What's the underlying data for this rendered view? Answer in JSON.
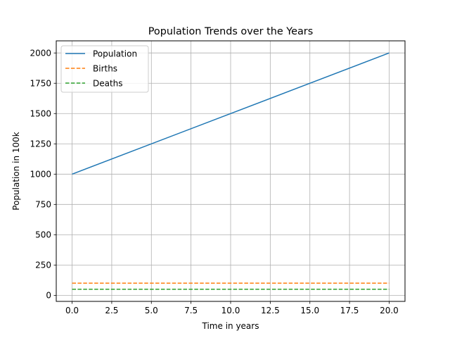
{
  "chart_data": {
    "type": "line",
    "title": "Population Trends over the Years",
    "xlabel": "Time in years",
    "ylabel": "Population in 100k",
    "xlim": [
      -1,
      21
    ],
    "ylim": [
      -50,
      2100
    ],
    "x_ticks": [
      0.0,
      2.5,
      5.0,
      7.5,
      10.0,
      12.5,
      15.0,
      17.5,
      20.0
    ],
    "x_tick_labels": [
      "0.0",
      "2.5",
      "5.0",
      "7.5",
      "10.0",
      "12.5",
      "15.0",
      "17.5",
      "20.0"
    ],
    "y_ticks": [
      0,
      250,
      500,
      750,
      1000,
      1250,
      1500,
      1750,
      2000
    ],
    "y_tick_labels": [
      "0",
      "250",
      "500",
      "750",
      "1000",
      "1250",
      "1500",
      "1750",
      "2000"
    ],
    "grid": true,
    "legend_position": "top-left",
    "series": [
      {
        "name": "Population",
        "color": "#1f77b4",
        "style": "solid",
        "x": [
          0,
          20
        ],
        "values": [
          1000,
          2000
        ]
      },
      {
        "name": "Births",
        "color": "#ff7f0e",
        "style": "dashed",
        "x": [
          0,
          20
        ],
        "values": [
          100,
          100
        ]
      },
      {
        "name": "Deaths",
        "color": "#2ca02c",
        "style": "dashed",
        "x": [
          0,
          20
        ],
        "values": [
          50,
          50
        ]
      }
    ]
  }
}
